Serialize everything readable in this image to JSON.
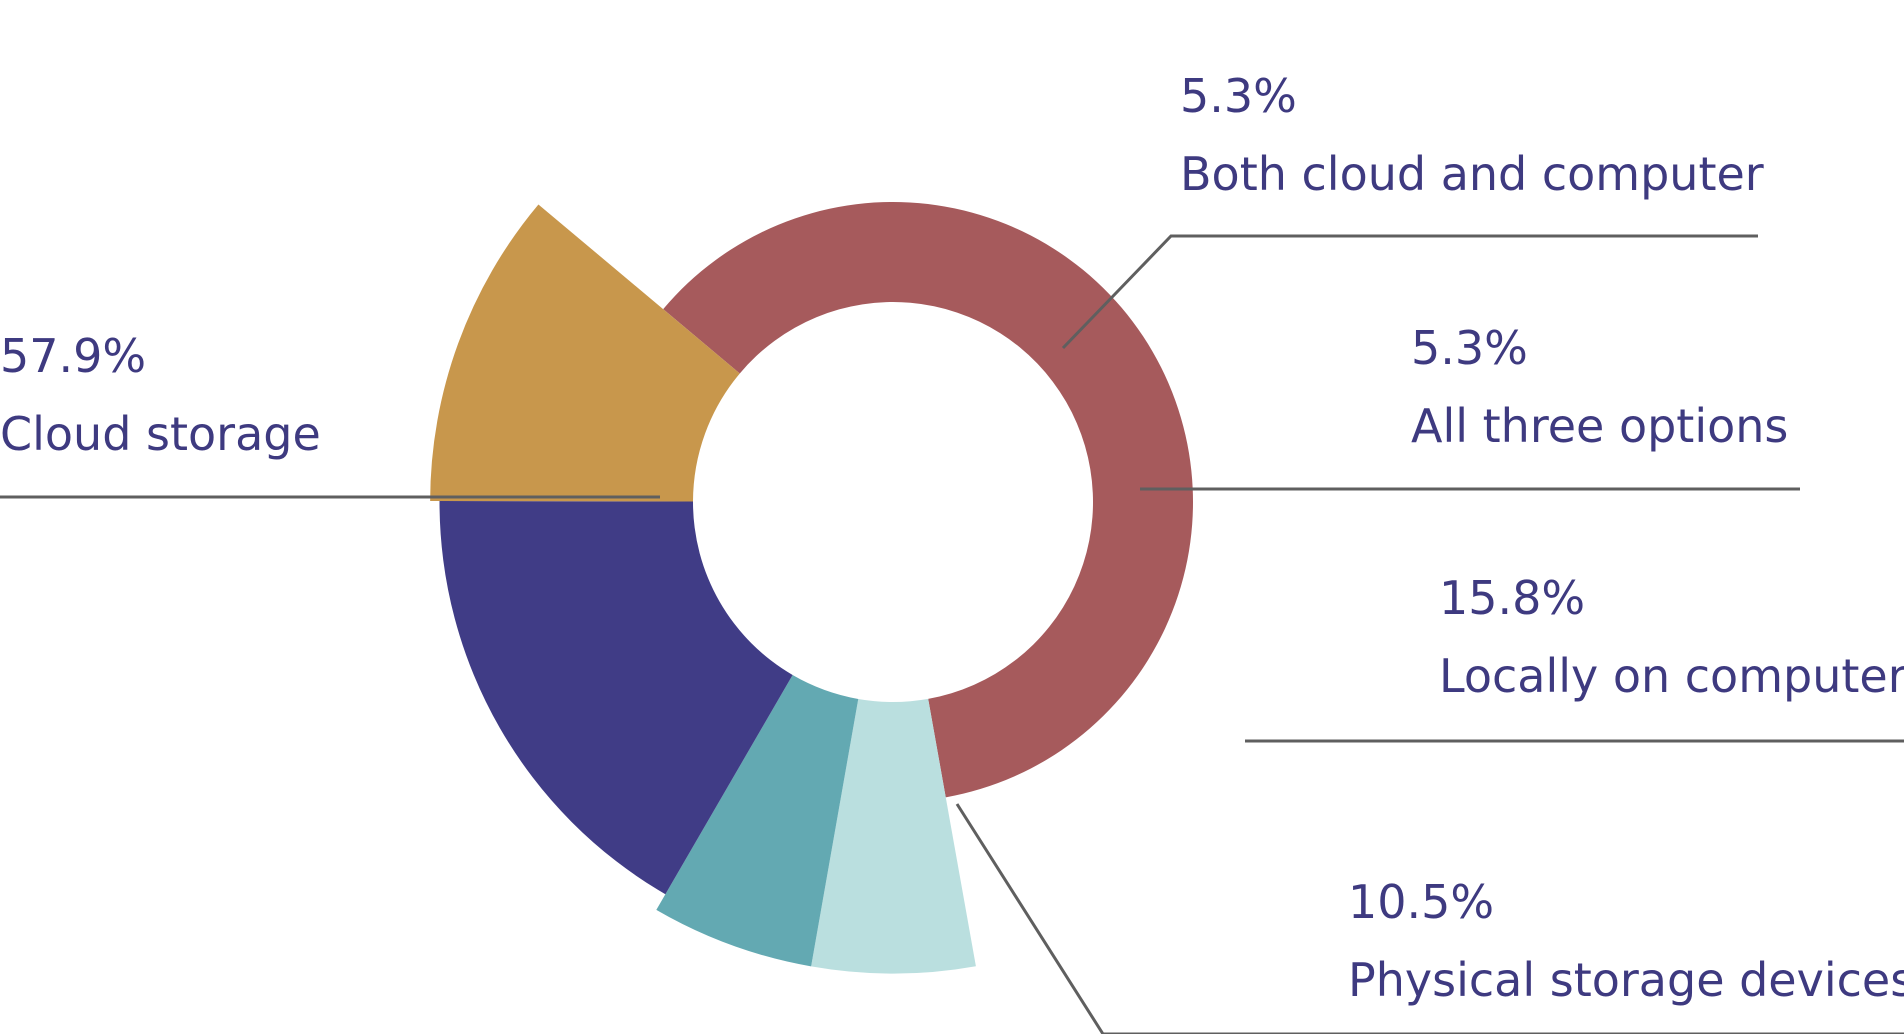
{
  "chart_data": {
    "type": "pie",
    "variant": "variable-radius donut",
    "slices": [
      {
        "label": "Cloud storage",
        "value_label": "57.9%",
        "value": 57.9,
        "color": "#a65a5c"
      },
      {
        "label": "Both cloud and computer",
        "value_label": "5.3%",
        "value": 5.3,
        "color": "#badfdf"
      },
      {
        "label": "All three options",
        "value_label": "5.3%",
        "value": 5.3,
        "color": "#63a9b2"
      },
      {
        "label": "Locally on computer",
        "value_label": "15.8%",
        "value": 15.8,
        "color": "#403c86"
      },
      {
        "label": "Physical storage devices",
        "value_label": "10.5%",
        "value": 10.5,
        "color": "#c8974c"
      }
    ]
  }
}
